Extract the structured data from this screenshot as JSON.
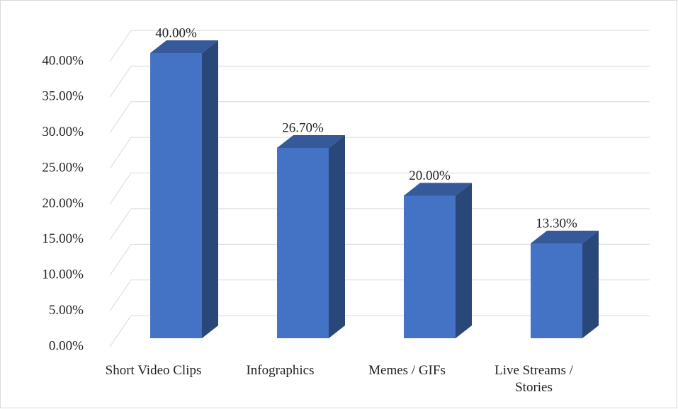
{
  "chart_data": {
    "type": "bar3d",
    "categories": [
      "Short Video Clips",
      "Infographics",
      "Memes / GIFs",
      "Live Streams / Stories"
    ],
    "values": [
      40,
      26.7,
      20,
      13.3
    ],
    "value_labels": [
      "40.00%",
      "26.70%",
      "20.00%",
      "13.30%"
    ],
    "color": "#4472c4",
    "ylim": [
      0,
      40
    ],
    "yticks": [
      {
        "value": 0,
        "label": "0.00%"
      },
      {
        "value": 5,
        "label": "5.00%"
      },
      {
        "value": 10,
        "label": "10.00%"
      },
      {
        "value": 15,
        "label": "15.00%"
      },
      {
        "value": 20,
        "label": "20.00%"
      },
      {
        "value": 25,
        "label": "25.00%"
      },
      {
        "value": 30,
        "label": "30.00%"
      },
      {
        "value": 35,
        "label": "35.00%"
      },
      {
        "value": 40,
        "label": "40.00%"
      }
    ],
    "grid": true
  }
}
